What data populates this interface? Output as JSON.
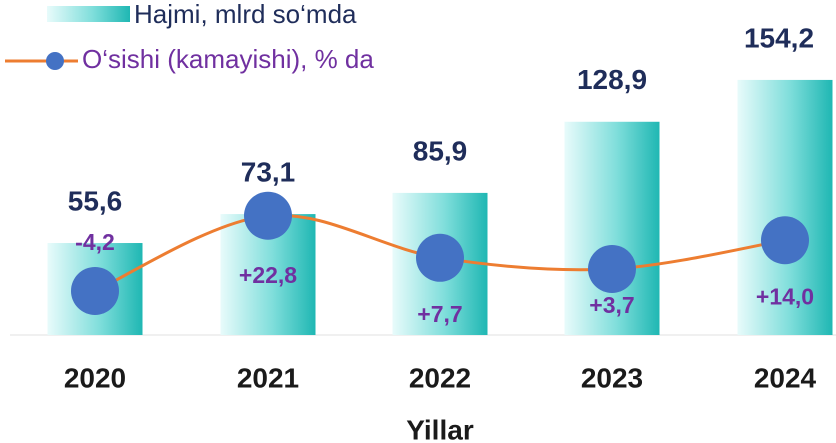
{
  "chart_data": {
    "type": "bar",
    "x_label": "Yillar",
    "categories": [
      "2020",
      "2021",
      "2022",
      "2023",
      "2024"
    ],
    "series": [
      {
        "name": "Hajmi, mlrd so‘mda",
        "color": "#2ec4c0",
        "values": [
          55.6,
          73.1,
          85.9,
          128.9,
          154.2
        ],
        "value_labels": [
          "55,6",
          "73,1",
          "85,9",
          "128,9",
          "154,2"
        ]
      },
      {
        "name": "O‘sishi (kamayishi), % da",
        "type": "line",
        "axis": "y2",
        "color": "#ed7d31",
        "marker_color": "#4472c4",
        "values": [
          -4.2,
          22.8,
          7.7,
          3.7,
          14.0
        ],
        "value_labels": [
          "-4,2",
          "+22,8",
          "+7,7",
          "+3,7",
          "+14,0"
        ]
      }
    ],
    "ylim": [
      0,
      155
    ],
    "y2lim": [
      -20,
      72
    ],
    "legend": "top-left"
  }
}
